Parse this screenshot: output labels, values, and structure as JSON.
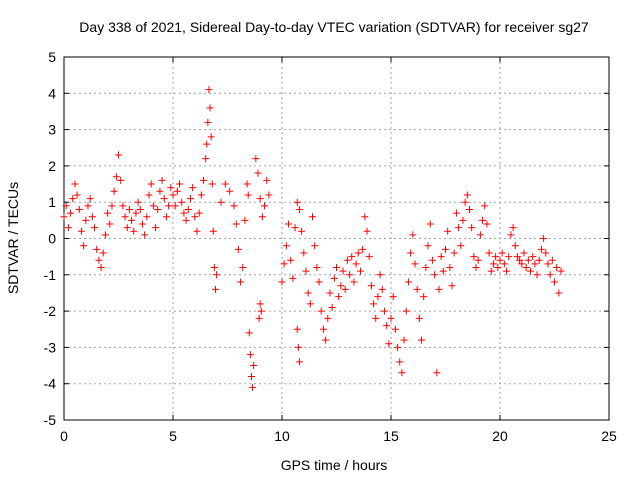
{
  "chart_data": {
    "type": "scatter",
    "title": "Day 338 of 2021, Sidereal Day-to-day VTEC variation (SDTVAR) for receiver sg27",
    "xlabel": "GPS time / hours",
    "ylabel": "SDTVAR / TECUs",
    "xlim": [
      0,
      25
    ],
    "ylim": [
      -5,
      5
    ],
    "xticks": [
      0,
      5,
      10,
      15,
      20,
      25
    ],
    "yticks": [
      -5,
      -4,
      -3,
      -2,
      -1,
      0,
      1,
      2,
      3,
      4,
      5
    ],
    "grid": true,
    "marker": "+",
    "series": [
      {
        "name": "SDTVAR",
        "color": "#ff0000",
        "points": [
          [
            0.0,
            0.6
          ],
          [
            0.1,
            0.9
          ],
          [
            0.2,
            0.3
          ],
          [
            0.3,
            0.7
          ],
          [
            0.4,
            1.1
          ],
          [
            0.5,
            1.5
          ],
          [
            0.6,
            1.2
          ],
          [
            0.7,
            0.8
          ],
          [
            0.8,
            0.2
          ],
          [
            0.9,
            -0.2
          ],
          [
            1.0,
            0.5
          ],
          [
            1.1,
            0.9
          ],
          [
            1.2,
            1.1
          ],
          [
            1.3,
            0.6
          ],
          [
            1.4,
            0.3
          ],
          [
            1.5,
            -0.3
          ],
          [
            1.6,
            -0.6
          ],
          [
            1.7,
            -0.8
          ],
          [
            1.8,
            -0.4
          ],
          [
            1.9,
            0.1
          ],
          [
            2.0,
            0.7
          ],
          [
            2.1,
            0.4
          ],
          [
            2.2,
            0.9
          ],
          [
            2.3,
            1.3
          ],
          [
            2.4,
            1.7
          ],
          [
            2.5,
            2.3
          ],
          [
            2.6,
            1.6
          ],
          [
            2.7,
            0.9
          ],
          [
            2.8,
            0.6
          ],
          [
            2.9,
            0.3
          ],
          [
            3.0,
            0.8
          ],
          [
            3.1,
            0.5
          ],
          [
            3.2,
            0.2
          ],
          [
            3.3,
            0.7
          ],
          [
            3.4,
            1.0
          ],
          [
            3.5,
            0.8
          ],
          [
            3.6,
            0.4
          ],
          [
            3.7,
            0.1
          ],
          [
            3.8,
            0.6
          ],
          [
            3.9,
            1.2
          ],
          [
            4.0,
            1.5
          ],
          [
            4.1,
            0.9
          ],
          [
            4.2,
            0.3
          ],
          [
            4.3,
            0.8
          ],
          [
            4.4,
            1.3
          ],
          [
            4.5,
            1.6
          ],
          [
            4.6,
            1.1
          ],
          [
            4.7,
            0.6
          ],
          [
            4.8,
            0.9
          ],
          [
            4.9,
            1.4
          ],
          [
            5.0,
            1.2
          ],
          [
            5.1,
            0.9
          ],
          [
            5.2,
            1.3
          ],
          [
            5.3,
            1.5
          ],
          [
            5.4,
            1.0
          ],
          [
            5.5,
            0.7
          ],
          [
            5.6,
            0.5
          ],
          [
            5.7,
            0.8
          ],
          [
            5.8,
            1.1
          ],
          [
            5.9,
            1.4
          ],
          [
            6.0,
            0.6
          ],
          [
            6.1,
            0.2
          ],
          [
            6.2,
            0.7
          ],
          [
            6.3,
            1.2
          ],
          [
            6.4,
            1.6
          ],
          [
            6.5,
            2.2
          ],
          [
            6.55,
            2.6
          ],
          [
            6.6,
            3.2
          ],
          [
            6.65,
            4.1
          ],
          [
            6.7,
            3.6
          ],
          [
            6.75,
            2.8
          ],
          [
            6.8,
            1.5
          ],
          [
            6.85,
            0.2
          ],
          [
            6.9,
            -0.8
          ],
          [
            6.95,
            -1.4
          ],
          [
            7.0,
            -1.0
          ],
          [
            7.2,
            1.0
          ],
          [
            7.4,
            1.5
          ],
          [
            7.6,
            1.3
          ],
          [
            7.8,
            0.9
          ],
          [
            7.9,
            0.4
          ],
          [
            8.0,
            -0.3
          ],
          [
            8.1,
            -1.2
          ],
          [
            8.2,
            -0.8
          ],
          [
            8.3,
            0.5
          ],
          [
            8.4,
            1.5
          ],
          [
            8.45,
            1.2
          ],
          [
            8.5,
            -2.6
          ],
          [
            8.55,
            -3.2
          ],
          [
            8.6,
            -3.8
          ],
          [
            8.65,
            -4.1
          ],
          [
            8.7,
            -3.5
          ],
          [
            8.8,
            2.2
          ],
          [
            8.9,
            1.8
          ],
          [
            9.0,
            1.1
          ],
          [
            9.1,
            0.6
          ],
          [
            9.2,
            0.9
          ],
          [
            9.3,
            1.6
          ],
          [
            9.4,
            1.2
          ],
          [
            9.0,
            -1.8
          ],
          [
            8.95,
            -2.2
          ],
          [
            9.05,
            -2.0
          ],
          [
            10.0,
            -1.2
          ],
          [
            10.1,
            -0.7
          ],
          [
            10.2,
            -0.2
          ],
          [
            10.3,
            0.4
          ],
          [
            10.4,
            -0.6
          ],
          [
            10.5,
            -1.1
          ],
          [
            10.6,
            0.3
          ],
          [
            10.7,
            1.0
          ],
          [
            10.8,
            0.8
          ],
          [
            10.9,
            0.2
          ],
          [
            11.0,
            -0.4
          ],
          [
            11.1,
            -0.9
          ],
          [
            11.2,
            -1.5
          ],
          [
            11.3,
            -1.8
          ],
          [
            11.4,
            0.6
          ],
          [
            11.5,
            -0.2
          ],
          [
            10.7,
            -2.5
          ],
          [
            10.75,
            -3.0
          ],
          [
            10.8,
            -3.4
          ],
          [
            11.6,
            -0.8
          ],
          [
            11.7,
            -1.2
          ],
          [
            11.8,
            -2.0
          ],
          [
            11.9,
            -2.5
          ],
          [
            12.0,
            -2.8
          ],
          [
            12.1,
            -2.2
          ],
          [
            12.2,
            -1.5
          ],
          [
            12.3,
            -1.9
          ],
          [
            12.4,
            -1.1
          ],
          [
            12.5,
            -0.8
          ],
          [
            12.6,
            -1.6
          ],
          [
            12.7,
            -1.3
          ],
          [
            12.8,
            -0.9
          ],
          [
            12.9,
            -1.4
          ],
          [
            13.0,
            -0.6
          ],
          [
            13.1,
            -1.0
          ],
          [
            13.2,
            -0.5
          ],
          [
            13.3,
            -1.2
          ],
          [
            13.4,
            -0.7
          ],
          [
            13.5,
            -0.4
          ],
          [
            13.6,
            -0.9
          ],
          [
            13.7,
            -0.3
          ],
          [
            13.8,
            0.6
          ],
          [
            13.9,
            0.2
          ],
          [
            14.0,
            -0.5
          ],
          [
            14.1,
            -1.3
          ],
          [
            14.2,
            -1.8
          ],
          [
            14.3,
            -2.2
          ],
          [
            14.4,
            -1.6
          ],
          [
            14.5,
            -1.0
          ],
          [
            14.6,
            -1.4
          ],
          [
            14.7,
            -2.0
          ],
          [
            14.8,
            -2.4
          ],
          [
            14.9,
            -2.9
          ],
          [
            15.0,
            -2.2
          ],
          [
            15.1,
            -1.6
          ],
          [
            15.2,
            -2.5
          ],
          [
            15.3,
            -3.0
          ],
          [
            15.4,
            -3.4
          ],
          [
            15.5,
            -3.7
          ],
          [
            15.6,
            -2.8
          ],
          [
            15.7,
            -2.0
          ],
          [
            15.8,
            -1.2
          ],
          [
            15.9,
            -0.4
          ],
          [
            16.0,
            0.1
          ],
          [
            16.1,
            -0.7
          ],
          [
            16.2,
            -1.4
          ],
          [
            16.3,
            -2.2
          ],
          [
            16.4,
            -2.8
          ],
          [
            16.5,
            -1.6
          ],
          [
            16.6,
            -0.8
          ],
          [
            16.7,
            -0.2
          ],
          [
            16.8,
            0.4
          ],
          [
            16.9,
            -0.6
          ],
          [
            17.0,
            -1.0
          ],
          [
            17.1,
            -3.7
          ],
          [
            17.2,
            -1.4
          ],
          [
            17.3,
            -0.5
          ],
          [
            17.4,
            -0.9
          ],
          [
            17.5,
            -0.3
          ],
          [
            17.6,
            0.2
          ],
          [
            17.7,
            -0.8
          ],
          [
            17.8,
            -1.3
          ],
          [
            17.9,
            -0.4
          ],
          [
            18.0,
            0.7
          ],
          [
            18.1,
            0.3
          ],
          [
            18.2,
            -0.2
          ],
          [
            18.3,
            0.5
          ],
          [
            18.4,
            1.0
          ],
          [
            18.5,
            1.2
          ],
          [
            18.6,
            0.8
          ],
          [
            18.7,
            0.3
          ],
          [
            18.8,
            -0.5
          ],
          [
            18.9,
            -0.8
          ],
          [
            19.0,
            -0.6
          ],
          [
            19.1,
            0.1
          ],
          [
            19.2,
            0.5
          ],
          [
            19.3,
            0.9
          ],
          [
            19.4,
            0.4
          ],
          [
            19.5,
            -0.4
          ],
          [
            19.6,
            -0.9
          ],
          [
            19.7,
            -0.7
          ],
          [
            19.8,
            -0.5
          ],
          [
            19.9,
            -0.8
          ],
          [
            20.0,
            -0.6
          ],
          [
            20.1,
            -0.4
          ],
          [
            20.2,
            -0.7
          ],
          [
            20.3,
            -0.9
          ],
          [
            20.4,
            -0.5
          ],
          [
            20.5,
            0.1
          ],
          [
            20.6,
            0.3
          ],
          [
            20.7,
            -0.2
          ],
          [
            20.8,
            -0.5
          ],
          [
            20.9,
            -0.6
          ],
          [
            21.0,
            -0.7
          ],
          [
            21.1,
            -0.4
          ],
          [
            21.2,
            -0.8
          ],
          [
            21.3,
            -0.6
          ],
          [
            21.4,
            -0.9
          ],
          [
            21.5,
            -0.5
          ],
          [
            21.6,
            -0.7
          ],
          [
            21.7,
            -1.0
          ],
          [
            21.8,
            -0.6
          ],
          [
            21.9,
            -0.3
          ],
          [
            22.0,
            0.0
          ],
          [
            22.1,
            -0.4
          ],
          [
            22.2,
            -0.7
          ],
          [
            22.3,
            -1.0
          ],
          [
            22.4,
            -0.6
          ],
          [
            22.5,
            -1.2
          ],
          [
            22.6,
            -0.8
          ],
          [
            22.7,
            -1.5
          ],
          [
            22.8,
            -0.9
          ]
        ]
      }
    ]
  }
}
